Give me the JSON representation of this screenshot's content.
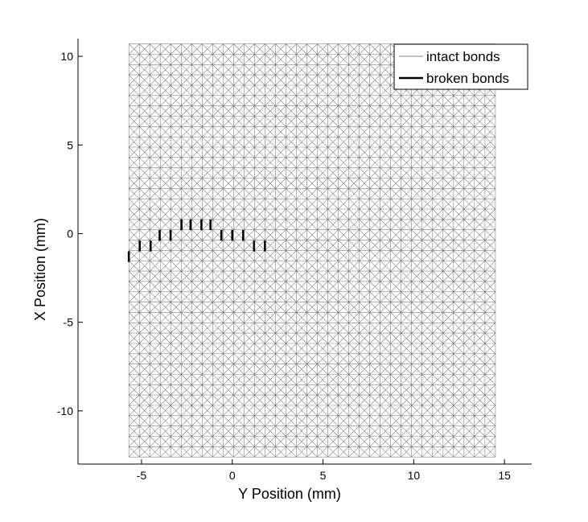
{
  "chart_data": {
    "type": "scatter",
    "xlabel": "Y Position (mm)",
    "ylabel": "X Position (mm)",
    "xlim": [
      -8.5,
      16.5
    ],
    "ylim": [
      -13,
      11
    ],
    "xticks": [
      -5,
      0,
      5,
      10,
      15
    ],
    "yticks": [
      -10,
      -5,
      0,
      5,
      10
    ],
    "grid": false,
    "legend_position": "top-right",
    "series": [
      {
        "name": "intact bonds",
        "style": "thin grey line",
        "color": "#808080",
        "mesh_extent": {
          "x": [
            -5.7,
            14.5
          ],
          "y": [
            -12.6,
            10.7
          ]
        },
        "mesh_spacing": 0.58
      },
      {
        "name": "broken bonds",
        "style": "thick black line",
        "color": "#000000",
        "segments": [
          {
            "x": -5.7,
            "y": [
              -1.6,
              -1.0
            ]
          },
          {
            "x": -5.1,
            "y": [
              -1.0,
              -0.4
            ]
          },
          {
            "x": -4.5,
            "y": [
              -1.0,
              -0.4
            ]
          },
          {
            "x": -4.0,
            "y": [
              -0.4,
              0.2
            ]
          },
          {
            "x": -3.4,
            "y": [
              -0.4,
              0.2
            ]
          },
          {
            "x": -2.8,
            "y": [
              0.2,
              0.8
            ]
          },
          {
            "x": -2.3,
            "y": [
              0.2,
              0.8
            ]
          },
          {
            "x": -1.7,
            "y": [
              0.2,
              0.8
            ]
          },
          {
            "x": -1.2,
            "y": [
              0.2,
              0.8
            ]
          },
          {
            "x": -0.6,
            "y": [
              -0.4,
              0.2
            ]
          },
          {
            "x": 0.0,
            "y": [
              -0.4,
              0.2
            ]
          },
          {
            "x": 0.6,
            "y": [
              -0.4,
              0.2
            ]
          },
          {
            "x": 1.2,
            "y": [
              -1.0,
              -0.4
            ]
          },
          {
            "x": 1.8,
            "y": [
              -1.0,
              -0.4
            ]
          }
        ]
      }
    ]
  }
}
